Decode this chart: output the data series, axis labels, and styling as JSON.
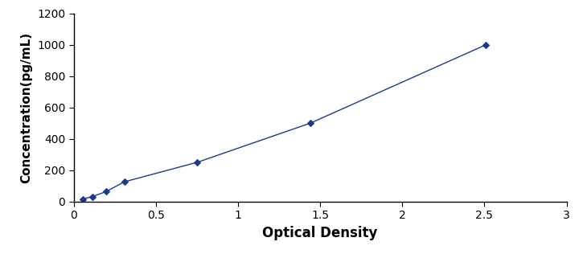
{
  "x_data": [
    0.057,
    0.114,
    0.197,
    0.308,
    0.753,
    1.442,
    2.51
  ],
  "y_data": [
    15.6,
    31.25,
    62.5,
    125,
    250,
    500,
    1000
  ],
  "line_color": "#1a3a8c",
  "marker_color": "#1a3a8c",
  "marker_style": "D",
  "marker_size": 4,
  "line_width": 1.0,
  "line_style": "-",
  "xlabel": "Optical Density",
  "ylabel": "Concentration(pg/mL)",
  "xlim": [
    0,
    3
  ],
  "ylim": [
    0,
    1200
  ],
  "xticks": [
    0,
    0.5,
    1,
    1.5,
    2,
    2.5,
    3
  ],
  "yticks": [
    0,
    200,
    400,
    600,
    800,
    1000,
    1200
  ],
  "xlabel_fontsize": 12,
  "ylabel_fontsize": 11,
  "tick_fontsize": 10,
  "background_color": "#ffffff",
  "figure_background": "#ffffff"
}
